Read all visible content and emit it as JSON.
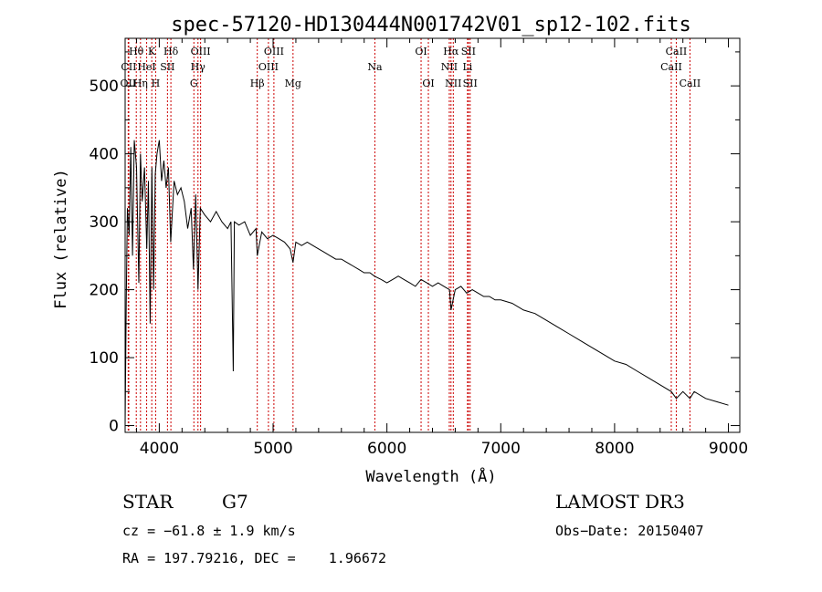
{
  "chart_data": {
    "type": "line",
    "title": "spec-57120-HD130444N001742V01_sp12-102.fits",
    "xlabel": "Wavelength (Å)",
    "ylabel": "Flux (relative)",
    "xlim": [
      3700,
      9100
    ],
    "ylim": [
      -10,
      570
    ],
    "x_ticks": [
      4000,
      5000,
      6000,
      7000,
      8000,
      9000
    ],
    "y_ticks": [
      0,
      100,
      200,
      300,
      400,
      500
    ],
    "series": [
      {
        "name": "flux",
        "x": [
          3700,
          3710,
          3720,
          3735,
          3750,
          3765,
          3780,
          3800,
          3820,
          3835,
          3850,
          3870,
          3890,
          3905,
          3920,
          3935,
          3950,
          3965,
          3980,
          4000,
          4020,
          4040,
          4060,
          4080,
          4100,
          4130,
          4160,
          4190,
          4220,
          4250,
          4280,
          4300,
          4320,
          4340,
          4360,
          4400,
          4450,
          4500,
          4550,
          4600,
          4630,
          4650,
          4660,
          4700,
          4750,
          4800,
          4850,
          4861,
          4900,
          4950,
          5000,
          5050,
          5100,
          5150,
          5175,
          5200,
          5250,
          5300,
          5350,
          5400,
          5450,
          5500,
          5550,
          5600,
          5650,
          5700,
          5750,
          5800,
          5850,
          5890,
          5950,
          6000,
          6050,
          6100,
          6150,
          6200,
          6250,
          6300,
          6350,
          6400,
          6450,
          6500,
          6550,
          6563,
          6600,
          6650,
          6700,
          6750,
          6800,
          6850,
          6900,
          6950,
          7000,
          7100,
          7200,
          7300,
          7400,
          7500,
          7600,
          7700,
          7800,
          7900,
          8000,
          8100,
          8200,
          8300,
          8400,
          8498,
          8542,
          8600,
          8662,
          8700,
          8800,
          8900,
          9000
        ],
        "values": [
          0,
          180,
          320,
          280,
          410,
          250,
          420,
          380,
          210,
          400,
          330,
          380,
          260,
          360,
          150,
          380,
          200,
          370,
          400,
          420,
          360,
          390,
          350,
          380,
          270,
          360,
          340,
          350,
          330,
          290,
          320,
          230,
          340,
          200,
          320,
          310,
          300,
          315,
          300,
          290,
          300,
          80,
          300,
          295,
          300,
          280,
          290,
          250,
          285,
          275,
          280,
          275,
          270,
          260,
          240,
          270,
          265,
          270,
          265,
          260,
          255,
          250,
          245,
          245,
          240,
          235,
          230,
          225,
          225,
          220,
          215,
          210,
          215,
          220,
          215,
          210,
          205,
          215,
          210,
          205,
          210,
          205,
          200,
          170,
          200,
          205,
          195,
          200,
          195,
          190,
          190,
          185,
          185,
          180,
          170,
          165,
          155,
          145,
          135,
          125,
          115,
          105,
          95,
          90,
          80,
          70,
          60,
          50,
          40,
          50,
          40,
          50,
          40,
          35,
          30
        ]
      }
    ],
    "spectral_lines": [
      {
        "name": "OII",
        "wavelength": 3727,
        "row": 3
      },
      {
        "name": "CII",
        "wavelength": 3732,
        "row": 2
      },
      {
        "name": "Hθ",
        "wavelength": 3798,
        "row": 1
      },
      {
        "name": "Hη",
        "wavelength": 3835,
        "row": 3
      },
      {
        "name": "HeI",
        "wavelength": 3889,
        "row": 2
      },
      {
        "name": "K",
        "wavelength": 3934,
        "row": 1
      },
      {
        "name": "H",
        "wavelength": 3968,
        "row": 3
      },
      {
        "name": "SII",
        "wavelength": 4072,
        "row": 2
      },
      {
        "name": "Hδ",
        "wavelength": 4102,
        "row": 1
      },
      {
        "name": "G",
        "wavelength": 4304,
        "row": 3
      },
      {
        "name": "Hγ",
        "wavelength": 4340,
        "row": 2
      },
      {
        "name": "OIII",
        "wavelength": 4363,
        "row": 1
      },
      {
        "name": "Hβ",
        "wavelength": 4861,
        "row": 3
      },
      {
        "name": "OIII",
        "wavelength": 4959,
        "row": 2
      },
      {
        "name": "OIII",
        "wavelength": 5007,
        "row": 1
      },
      {
        "name": "Mg",
        "wavelength": 5175,
        "row": 3
      },
      {
        "name": "Na",
        "wavelength": 5894,
        "row": 2
      },
      {
        "name": "OI",
        "wavelength": 6300,
        "row": 1
      },
      {
        "name": "OI",
        "wavelength": 6364,
        "row": 3
      },
      {
        "name": "NII",
        "wavelength": 6548,
        "row": 2
      },
      {
        "name": "Hα",
        "wavelength": 6563,
        "row": 1
      },
      {
        "name": "NII",
        "wavelength": 6583,
        "row": 3
      },
      {
        "name": "Li",
        "wavelength": 6708,
        "row": 2
      },
      {
        "name": "SII",
        "wavelength": 6716,
        "row": 1
      },
      {
        "name": "SII",
        "wavelength": 6731,
        "row": 3
      },
      {
        "name": "CaII",
        "wavelength": 8498,
        "row": 2
      },
      {
        "name": "CaII",
        "wavelength": 8542,
        "row": 1
      },
      {
        "name": "CaII",
        "wavelength": 8662,
        "row": 3
      }
    ]
  },
  "info": {
    "class": "STAR",
    "subclass": "G7",
    "survey": "LAMOST DR3",
    "cz": "cz = −61.8 ± 1.9 km/s",
    "obs_date": "Obs−Date: 20150407",
    "coords": "RA = 197.79216, DEC =    1.96672"
  },
  "colors": {
    "line_marker": "#cc0000",
    "spectrum": "#000000",
    "axes": "#000000"
  }
}
